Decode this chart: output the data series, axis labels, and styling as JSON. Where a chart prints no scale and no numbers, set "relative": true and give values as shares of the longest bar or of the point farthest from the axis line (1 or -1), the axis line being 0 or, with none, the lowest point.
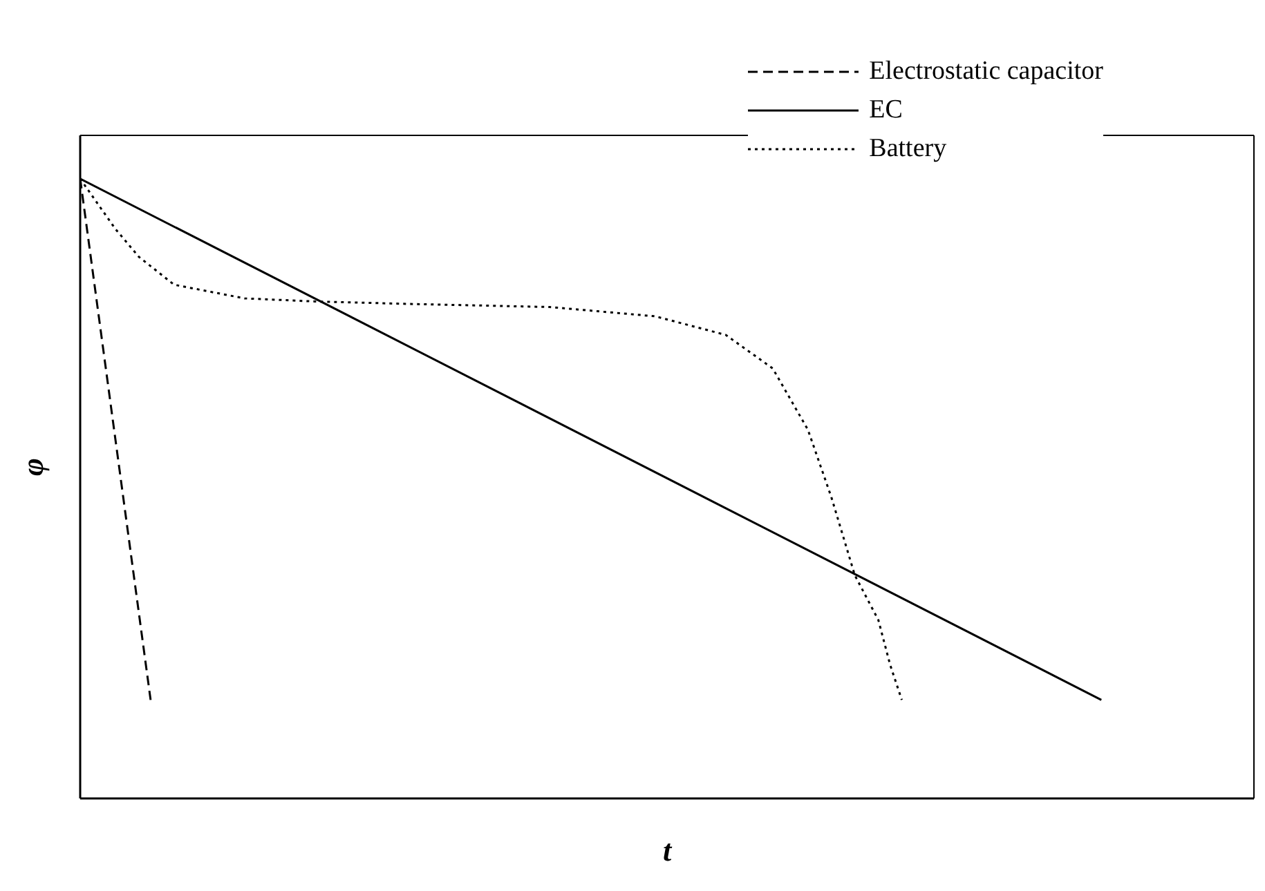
{
  "chart_data": {
    "type": "line",
    "relative": true,
    "xlabel": "t",
    "ylabel": "φ",
    "legend": "top right",
    "categories": [
      null,
      null,
      null,
      null,
      null,
      null,
      null,
      null,
      null,
      null,
      null,
      null,
      null,
      null,
      null,
      null,
      null,
      null,
      null,
      null,
      null,
      null,
      null,
      null,
      null,
      null,
      null,
      null,
      null,
      null,
      null,
      null,
      null,
      null,
      null,
      null,
      null,
      null,
      null,
      null,
      null,
      null,
      null,
      null,
      null,
      null,
      null,
      null,
      null,
      null,
      null,
      null,
      null,
      null,
      null,
      null,
      null,
      null,
      null,
      null,
      null,
      null,
      null,
      null,
      null,
      null,
      null,
      null,
      null,
      null,
      null,
      null,
      null,
      null,
      null,
      null,
      null,
      null,
      null,
      null,
      null,
      null,
      null,
      null,
      null,
      null,
      null,
      null,
      null,
      null,
      null,
      null,
      null,
      null,
      null,
      null,
      null,
      null,
      null,
      null,
      null
    ],
    "series": [
      {
        "name": "Electrostatic capacitor",
        "color": "#000000",
        "line_style": "dashed",
        "values": [
          1,
          null,
          null,
          null,
          null,
          null,
          0.159,
          null,
          null,
          null,
          null,
          null,
          null,
          null,
          null,
          null,
          null,
          null,
          null,
          null,
          null,
          null,
          null,
          null,
          null,
          null,
          null,
          null,
          null,
          null,
          null,
          null,
          null,
          null,
          null,
          null,
          null,
          null,
          null,
          null,
          null,
          null,
          null,
          null,
          null,
          null,
          null,
          null,
          null,
          null,
          null,
          null,
          null,
          null,
          null,
          null,
          null,
          null,
          null,
          null,
          null,
          null,
          null,
          null,
          null,
          null,
          null,
          null,
          null,
          null,
          null,
          null,
          null,
          null,
          null,
          null,
          null,
          null,
          null,
          null,
          null,
          null,
          null,
          null,
          null,
          null,
          null,
          null,
          null,
          null,
          null,
          null,
          null,
          null,
          null,
          null,
          null,
          null,
          null,
          null,
          null
        ]
      },
      {
        "name": "EC",
        "color": "#000000",
        "line_style": "solid",
        "values": [
          1,
          null,
          null,
          null,
          null,
          null,
          null,
          null,
          null,
          null,
          null,
          null,
          null,
          null,
          null,
          null,
          null,
          null,
          null,
          null,
          null,
          null,
          null,
          null,
          null,
          null,
          null,
          null,
          null,
          null,
          null,
          null,
          null,
          null,
          null,
          null,
          null,
          null,
          null,
          null,
          null,
          null,
          null,
          null,
          null,
          null,
          null,
          null,
          null,
          null,
          null,
          null,
          null,
          null,
          null,
          null,
          null,
          null,
          null,
          null,
          null,
          null,
          null,
          null,
          null,
          null,
          null,
          null,
          null,
          null,
          null,
          null,
          null,
          null,
          null,
          null,
          null,
          null,
          null,
          null,
          null,
          null,
          null,
          null,
          null,
          null,
          null,
          0.159,
          null,
          null,
          null,
          null,
          null,
          null,
          null,
          null,
          null,
          null,
          null,
          null,
          null
        ]
      },
      {
        "name": "Battery",
        "color": "#000000",
        "line_style": "dotted",
        "values": [
          1,
          null,
          null,
          0.919,
          null,
          0.874,
          null,
          null,
          0.829,
          null,
          null,
          null,
          null,
          null,
          0.807,
          null,
          null,
          null,
          null,
          null,
          0.802,
          null,
          null,
          null,
          null,
          null,
          null,
          null,
          0.798,
          null,
          null,
          null,
          null,
          null,
          null,
          null,
          null,
          null,
          null,
          null,
          0.793,
          null,
          null,
          null,
          null,
          null,
          null,
          null,
          null,
          0.778,
          null,
          null,
          null,
          null,
          null,
          0.748,
          null,
          null,
          null,
          0.694,
          null,
          null,
          0.595,
          null,
          0.486,
          null,
          0.36,
          null,
          0.288,
          0.216,
          0.159,
          null,
          null,
          null,
          null,
          null,
          null,
          null,
          null,
          null,
          null,
          null,
          null,
          null,
          null,
          null,
          null,
          null,
          null,
          null,
          null,
          null,
          null,
          null,
          null,
          null,
          null,
          null,
          null,
          null,
          null
        ]
      }
    ]
  }
}
